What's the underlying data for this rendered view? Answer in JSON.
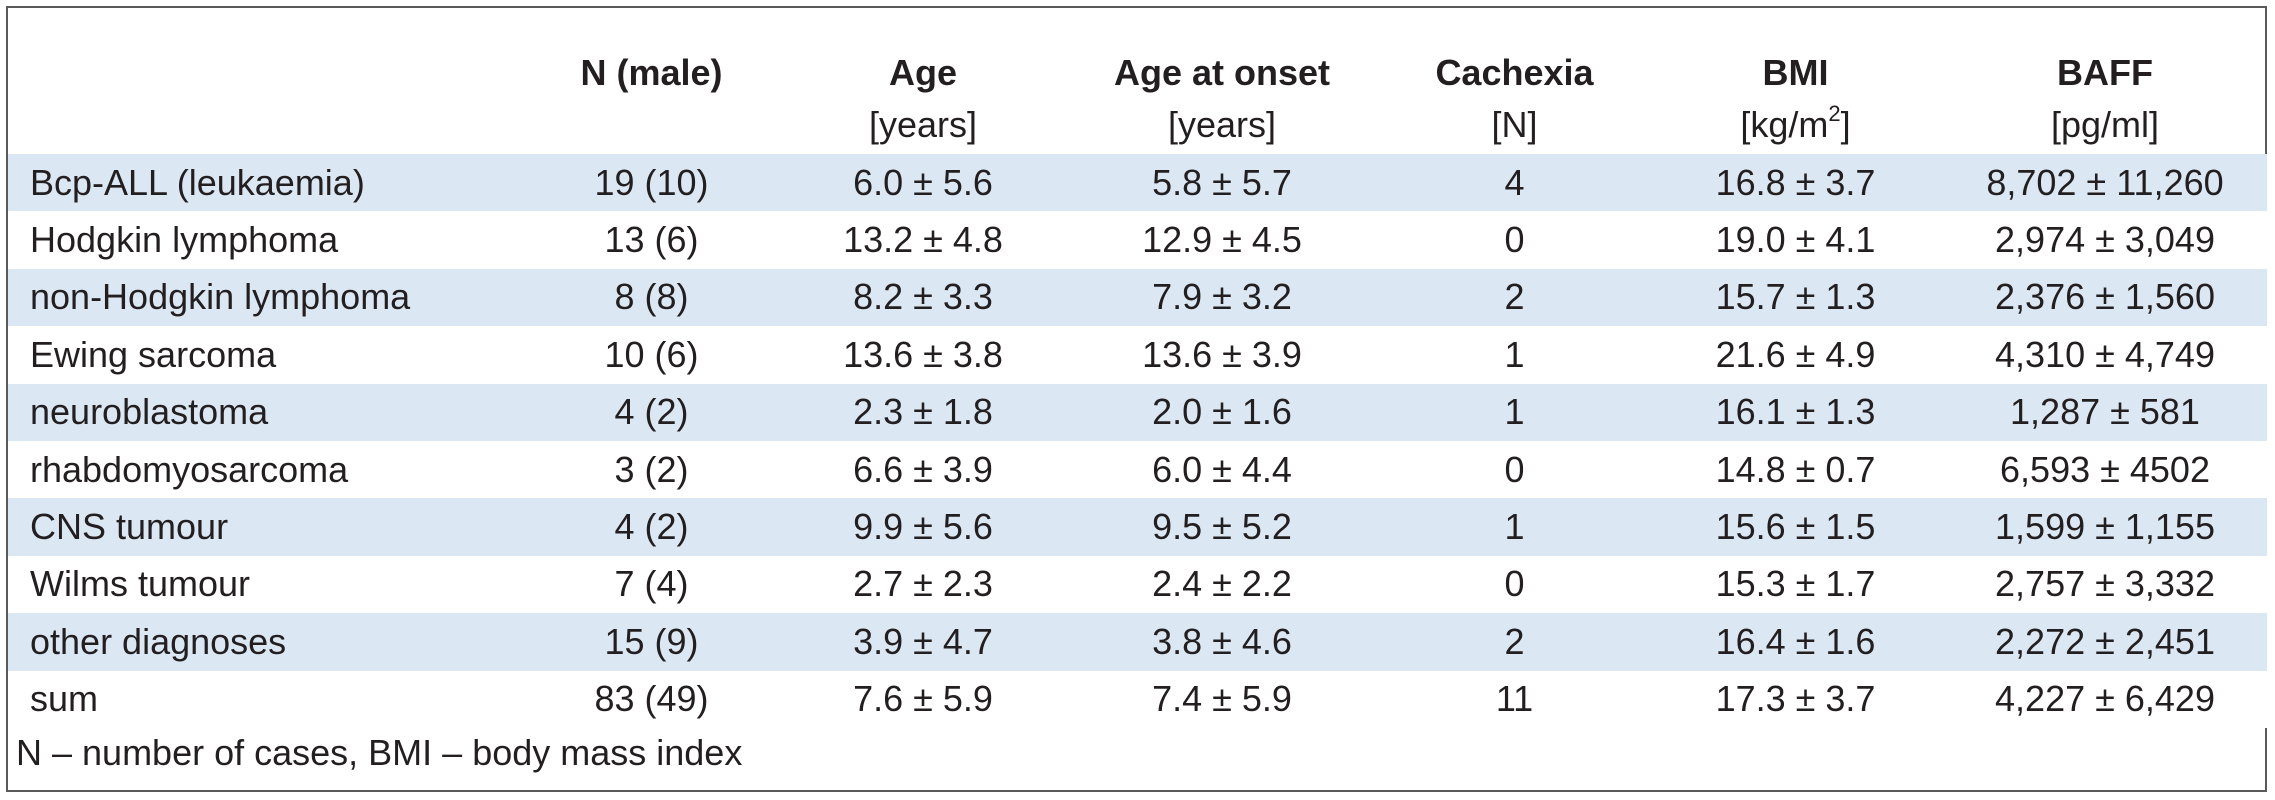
{
  "table": {
    "headers": [
      "",
      "N (male)",
      "Age",
      "Age at onset",
      "Cachexia",
      "BMI",
      "BAFF"
    ],
    "units": [
      "",
      "",
      "[years]",
      "[years]",
      "[N]",
      "[kg/m",
      "[pg/ml]"
    ],
    "bmi_unit_sup": "2",
    "bmi_unit_tail": "]",
    "rows": [
      {
        "label": "Bcp-ALL (leukaemia)",
        "n": "19 (10)",
        "age": "6.0 ± 5.6",
        "onset": "5.8 ± 5.7",
        "cachexia": "4",
        "bmi": "16.8 ± 3.7",
        "baff": "8,702 ± 11,260"
      },
      {
        "label": "Hodgkin lymphoma",
        "n": "13 (6)",
        "age": "13.2 ± 4.8",
        "onset": "12.9 ± 4.5",
        "cachexia": "0",
        "bmi": "19.0 ± 4.1",
        "baff": "2,974 ± 3,049"
      },
      {
        "label": "non-Hodgkin lymphoma",
        "n": "8 (8)",
        "age": "8.2 ± 3.3",
        "onset": "7.9 ± 3.2",
        "cachexia": "2",
        "bmi": "15.7 ± 1.3",
        "baff": "2,376 ± 1,560"
      },
      {
        "label": "Ewing sarcoma",
        "n": "10 (6)",
        "age": "13.6 ± 3.8",
        "onset": "13.6 ± 3.9",
        "cachexia": "1",
        "bmi": "21.6 ± 4.9",
        "baff": "4,310 ± 4,749"
      },
      {
        "label": "neuroblastoma",
        "n": "4 (2)",
        "age": "2.3 ± 1.8",
        "onset": "2.0 ± 1.6",
        "cachexia": "1",
        "bmi": "16.1 ± 1.3",
        "baff": "1,287 ± 581"
      },
      {
        "label": "rhabdomyosarcoma",
        "n": "3 (2)",
        "age": "6.6 ± 3.9",
        "onset": "6.0 ± 4.4",
        "cachexia": "0",
        "bmi": "14.8 ± 0.7",
        "baff": "6,593 ± 4502"
      },
      {
        "label": "CNS tumour",
        "n": "4 (2)",
        "age": "9.9 ± 5.6",
        "onset": "9.5 ± 5.2",
        "cachexia": "1",
        "bmi": "15.6 ± 1.5",
        "baff": "1,599 ± 1,155"
      },
      {
        "label": "Wilms tumour",
        "n": "7 (4)",
        "age": "2.7 ± 2.3",
        "onset": "2.4 ± 2.2",
        "cachexia": "0",
        "bmi": "15.3 ± 1.7",
        "baff": "2,757 ± 3,332"
      },
      {
        "label": "other diagnoses",
        "n": "15 (9)",
        "age": "3.9 ± 4.7",
        "onset": "3.8 ± 4.6",
        "cachexia": "2",
        "bmi": "16.4 ± 1.6",
        "baff": "2,272 ± 2,451"
      },
      {
        "label": "sum",
        "n": "83 (49)",
        "age": "7.6 ± 5.9",
        "onset": "7.4 ± 5.9",
        "cachexia": "11",
        "bmi": "17.3 ± 3.7",
        "baff": "4,227 ± 6,429"
      }
    ]
  },
  "footnote": "N – number of cases, BMI – body mass index",
  "colors": {
    "row_shade": "#dbe8f4",
    "border": "#5a5a5a",
    "text": "#231f20"
  }
}
